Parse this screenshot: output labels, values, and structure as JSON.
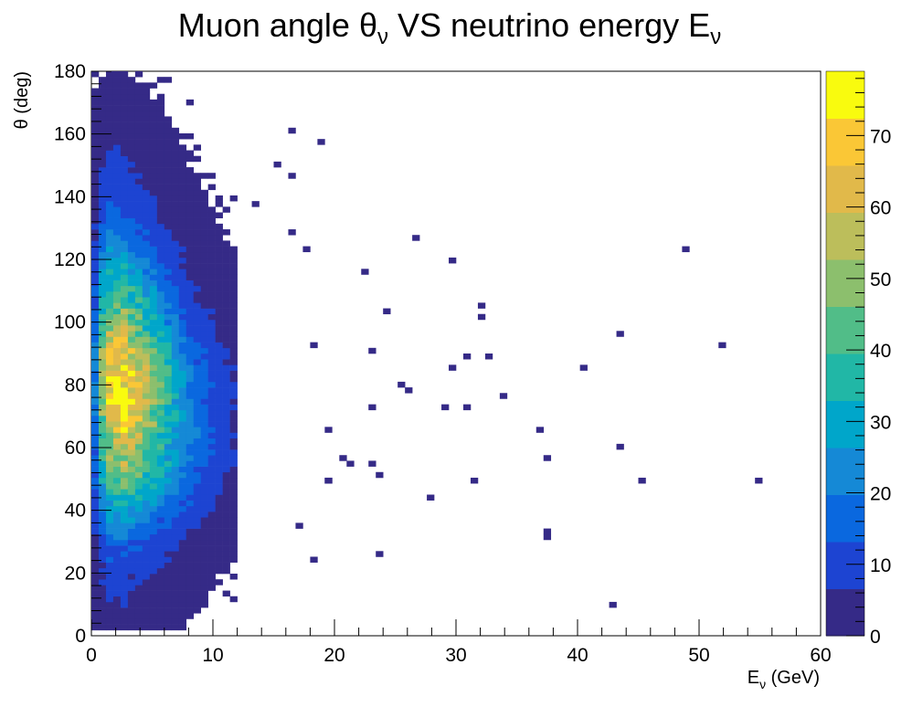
{
  "chart_data": {
    "type": "heatmap",
    "title": "Muon angle θ",
    "title_sub": "ν",
    "title_mid": " VS neutrino energy E",
    "title_sub2": "ν",
    "xlabel_main": "E",
    "xlabel_sub": "ν",
    "xlabel_rest": " (GeV)",
    "ylabel": "θ (deg)",
    "xlim": [
      0,
      60
    ],
    "ylim": [
      0,
      180
    ],
    "bin_width_x": 0.6,
    "bin_width_y": 1.8,
    "x_ticks": [
      "0",
      "10",
      "20",
      "30",
      "40",
      "50",
      "60"
    ],
    "y_ticks": [
      "0",
      "20",
      "40",
      "60",
      "80",
      "100",
      "120",
      "140",
      "160",
      "180"
    ],
    "z_range": [
      0,
      79
    ],
    "z_ticks": [
      "0",
      "10",
      "20",
      "30",
      "40",
      "50",
      "60",
      "70"
    ],
    "palette": [
      "#352a87",
      "#1d44d2",
      "#0a68df",
      "#1589d6",
      "#00a6ca",
      "#21b7a6",
      "#51bd88",
      "#8cbf6d",
      "#bcbe5b",
      "#e1b94a",
      "#fac736",
      "#f9fb0e"
    ],
    "grid": false,
    "legend": "colorbar right",
    "profile": [
      {
        "theta": 2,
        "peak": 4,
        "width": 2.0
      },
      {
        "theta": 10,
        "peak": 6,
        "width": 2.2
      },
      {
        "theta": 20,
        "peak": 9,
        "width": 2.3
      },
      {
        "theta": 30,
        "peak": 16,
        "width": 2.4
      },
      {
        "theta": 40,
        "peak": 30,
        "width": 2.5
      },
      {
        "theta": 50,
        "peak": 45,
        "width": 2.5
      },
      {
        "theta": 60,
        "peak": 58,
        "width": 2.5
      },
      {
        "theta": 70,
        "peak": 68,
        "width": 2.4
      },
      {
        "theta": 80,
        "peak": 72,
        "width": 2.4
      },
      {
        "theta": 90,
        "peak": 66,
        "width": 2.3
      },
      {
        "theta": 100,
        "peak": 52,
        "width": 2.2
      },
      {
        "theta": 110,
        "peak": 40,
        "width": 2.1
      },
      {
        "theta": 120,
        "peak": 28,
        "width": 2.0
      },
      {
        "theta": 130,
        "peak": 18,
        "width": 1.9
      },
      {
        "theta": 140,
        "peak": 12,
        "width": 1.9
      },
      {
        "theta": 150,
        "peak": 8,
        "width": 1.8
      },
      {
        "theta": 160,
        "peak": 5,
        "width": 1.8
      },
      {
        "theta": 170,
        "peak": 3,
        "width": 1.6
      },
      {
        "theta": 180,
        "peak": 1,
        "width": 1.4
      }
    ],
    "sparse_points": [
      [
        48.9,
        122.7
      ],
      [
        52.0,
        91.8
      ],
      [
        54.9,
        50.2
      ],
      [
        45.3,
        49.6
      ],
      [
        43.4,
        59.7
      ],
      [
        42.9,
        9.4
      ],
      [
        37.3,
        31.4
      ],
      [
        37.3,
        34.0
      ],
      [
        37.5,
        57.2
      ],
      [
        36.9,
        65.9
      ],
      [
        40.4,
        86.3
      ],
      [
        43.5,
        95.5
      ],
      [
        33.9,
        75.9
      ],
      [
        32.7,
        89.0
      ],
      [
        31.5,
        49.2
      ],
      [
        30.8,
        88.8
      ],
      [
        29.5,
        86.1
      ],
      [
        29.1,
        73.5
      ],
      [
        31.0,
        72.0
      ],
      [
        27.8,
        43.6
      ],
      [
        23.9,
        50.8
      ],
      [
        24.5,
        102.9
      ],
      [
        26.0,
        79.0
      ],
      [
        26.7,
        127.3
      ],
      [
        25.6,
        80.7
      ],
      [
        29.7,
        119.6
      ],
      [
        32.0,
        105.7
      ],
      [
        32.0,
        101.4
      ],
      [
        23.2,
        55.0
      ],
      [
        22.8,
        90.8
      ],
      [
        21.5,
        55.5
      ],
      [
        20.7,
        56.2
      ],
      [
        19.7,
        50.0
      ],
      [
        19.3,
        49.2
      ],
      [
        22.6,
        116.3
      ],
      [
        22.8,
        72.1
      ],
      [
        18.8,
        157.8
      ],
      [
        19.2,
        65.5
      ],
      [
        17.8,
        122.9
      ],
      [
        18.3,
        92.7
      ],
      [
        16.6,
        128.3
      ],
      [
        16.4,
        161.3
      ],
      [
        16.2,
        146.5
      ],
      [
        13.5,
        138.4
      ],
      [
        15.2,
        150.3
      ],
      [
        17.0,
        35.2
      ],
      [
        18.5,
        24.4
      ],
      [
        23.4,
        26.0
      ]
    ]
  }
}
